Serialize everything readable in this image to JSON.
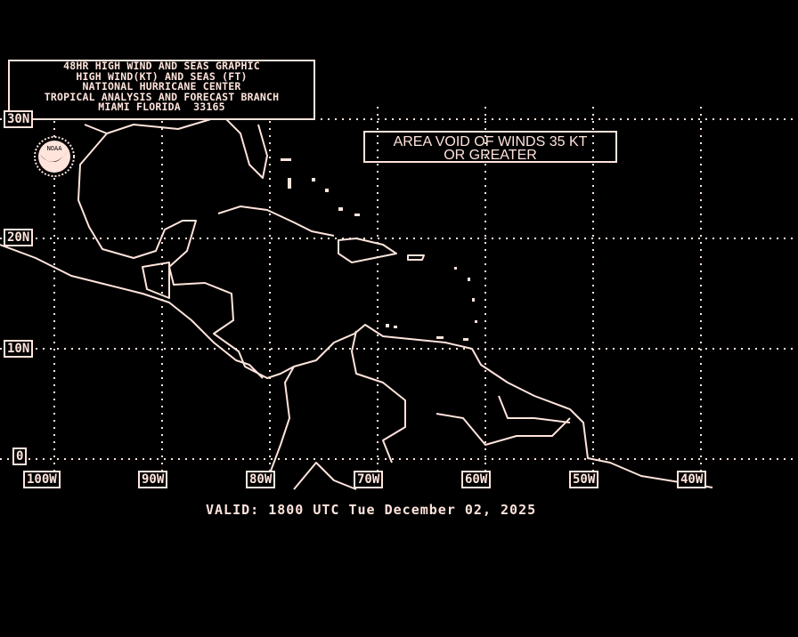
{
  "title_block": {
    "lines": [
      "48HR HIGH WIND AND SEAS GRAPHIC",
      "HIGH WIND(KT) AND SEAS (FT)",
      "NATIONAL HURRICANE CENTER",
      "TROPICAL ANALYSIS AND FORECAST BRANCH",
      "MIAMI FLORIDA  33165"
    ]
  },
  "annotation": {
    "lines": [
      "AREA VOID OF WINDS 35 KT",
      "OR GREATER"
    ]
  },
  "logo": {
    "text": "NOAA"
  },
  "latitude_labels": [
    "30N",
    "20N",
    "10N",
    "0"
  ],
  "longitude_labels": [
    "100W",
    "90W",
    "80W",
    "70W",
    "60W",
    "50W",
    "40W"
  ],
  "valid_time": "VALID: 1800 UTC Tue December 02, 2025",
  "colors": {
    "background": "#000000",
    "foreground": "#ffe4dc"
  }
}
